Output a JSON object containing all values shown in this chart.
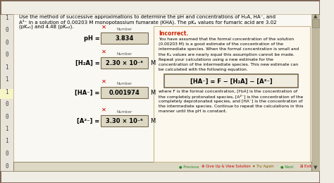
{
  "title_text": "Use the method of successive approximations to determine the pH and concentrations of H₂A, HA⁻, and",
  "title_text2": "A²⁻ in a solution of 0.00203 M monopotassium fumarate (KHA). The pKₐ values for fumaric acid are 3.02",
  "title_text3": "(pKₐ₁) and 4.48 (pKₐ₂).",
  "bg_color": "#f0ede5",
  "content_bg": "#faf8f2",
  "left_margin_bg": "#e8e4da",
  "box_bg": "#ddd8c4",
  "box_border": "#7a6a50",
  "red_x_color": "#cc0000",
  "incorrect_color": "#cc2200",
  "text_color": "#000000",
  "eq1_label": "pH =",
  "eq1_value": "3.834",
  "eq2_label": "[H₂A] =",
  "eq2_value": "2.30 × 10⁻⁵",
  "eq2_unit": "M",
  "eq3_label": "[HA⁻] =",
  "eq3_value": "0.001974",
  "eq3_unit": "M",
  "eq4_label": "[A²⁻] =",
  "eq4_value": "3.30 × 10⁻⁵",
  "eq4_unit": "M",
  "incorrect_title": "Incorrect.",
  "incorrect_text1": "You have assumed that the formal concentration of the solution",
  "incorrect_text2": "(0.00203 M) is a good estimate of the concentration of the",
  "incorrect_text3": "intermediate species. When the formal concentration is small and",
  "incorrect_text4": "the Kₐ values are nearly equal this assumption cannot be made.",
  "incorrect_text5": "Repeat your calculations using a new estimate for the",
  "incorrect_text6": "concentration of the intermediate species. This new estimate can",
  "incorrect_text7": "be calculated with the following equation.",
  "formula": "[HA⁻] = F − [H₂A] − [A²⁻]",
  "desc_text1": "where F is the formal concentration, [H₂A] is the concentration of",
  "desc_text2": "the completely protonated species, [A²⁻] is the concentration of the",
  "desc_text3": "completely deprotonated species, and [HA⁻] is the concentration of",
  "desc_text4": "the intermediate species. Continue to repeat the calculations in this",
  "desc_text5": "manner until the pH is constant.",
  "left_nums": [
    1,
    0,
    0,
    0,
    1,
    1,
    1,
    0,
    0,
    1,
    1,
    0,
    0
  ],
  "scrollbar_color": "#c0b89e",
  "nav_bar_color": "#ddd8c4",
  "outer_border_color": "#7a6050"
}
